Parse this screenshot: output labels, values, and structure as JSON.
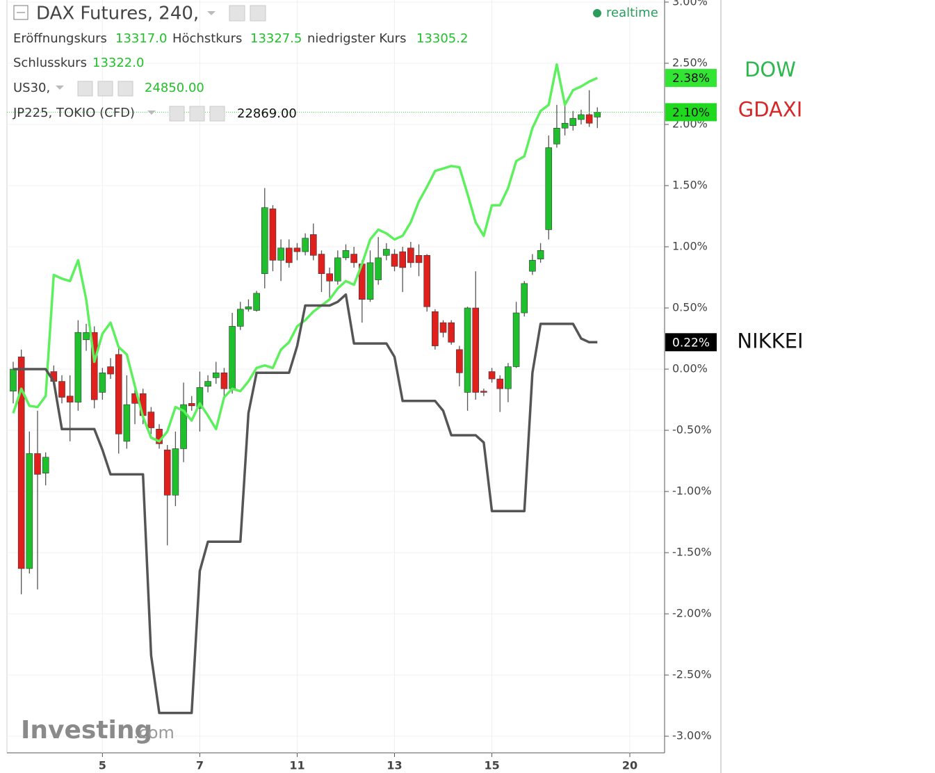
{
  "header": {
    "title": "DAX Futures, 240,",
    "status": "realtime",
    "ohlc": [
      {
        "label": "Eröffnungskurs",
        "value": "13317.0"
      },
      {
        "label": "Höchstkurs",
        "value": "13327.5"
      },
      {
        "label": "niedrigster Kurs",
        "value": "13305.2"
      },
      {
        "label": "Schlusskurs",
        "value": "13322.0"
      }
    ],
    "overlays": [
      {
        "label": "US30,",
        "value": "24850.00"
      },
      {
        "label": "JP225, TOKIO (CFD)",
        "value": "22869.00"
      }
    ],
    "watermark": {
      "brand": "Investing",
      "suffix": ".com"
    }
  },
  "chart_data": {
    "type": "candlestick",
    "x": [
      0,
      1,
      2,
      3,
      4,
      5,
      6,
      7,
      8,
      9,
      10,
      11,
      12,
      13,
      14,
      15,
      16,
      17,
      18,
      19,
      20,
      21,
      22,
      23,
      24,
      25,
      26,
      27,
      28,
      29,
      30,
      31,
      32,
      33,
      34,
      35,
      36,
      37,
      38,
      39,
      40,
      41,
      42,
      43,
      44,
      45,
      46,
      47,
      48,
      49,
      50,
      51,
      52,
      53,
      54,
      55,
      56,
      57,
      58,
      59,
      60,
      61,
      62,
      63,
      64,
      65,
      66,
      67,
      68,
      69,
      70,
      71,
      72
    ],
    "xlim": [
      -0.77,
      80.2
    ],
    "xticks": [
      {
        "value": 11,
        "label": "5"
      },
      {
        "value": 23,
        "label": "7"
      },
      {
        "value": 35,
        "label": "11"
      },
      {
        "value": 47,
        "label": "13"
      },
      {
        "value": 59,
        "label": "15"
      },
      {
        "value": 76,
        "label": "20"
      }
    ],
    "ylim": [
      -3.136,
      3.017
    ],
    "yticks": [
      {
        "value": -3,
        "label": "-3.00%"
      },
      {
        "value": -2.5,
        "label": "-2.50%"
      },
      {
        "value": -2,
        "label": "-2.00%"
      },
      {
        "value": -1.5,
        "label": "-1.50%"
      },
      {
        "value": -1,
        "label": "-1.00%"
      },
      {
        "value": -0.5,
        "label": "-0.50%"
      },
      {
        "value": 0,
        "label": "0.00%"
      },
      {
        "value": 0.5,
        "label": "0.50%"
      },
      {
        "value": 1,
        "label": "1.00%"
      },
      {
        "value": 1.5,
        "label": "1.50%"
      },
      {
        "value": 2,
        "label": "2.00%"
      },
      {
        "value": 2.5,
        "label": "2.50%"
      },
      {
        "value": 3,
        "label": "3.00%"
      }
    ],
    "grid": true,
    "series": [
      {
        "name": "GDAXI",
        "type": "candlestick",
        "color": "#d62728",
        "up_color": "#1fbf2e",
        "down_color": "#e0201c",
        "end_label": "2.10%",
        "end_label_color": "#1ed91e",
        "open": [
          -0.18,
          0.1,
          -1.63,
          -0.69,
          -0.85,
          -0.02,
          -0.1,
          -0.22,
          -0.27,
          0.24,
          0.3,
          -0.19,
          0.02,
          0.12,
          -0.59,
          -0.2,
          -0.2,
          -0.35,
          -0.49,
          -0.66,
          -1.03,
          -0.65,
          -0.28,
          -0.32,
          -0.14,
          -0.07,
          -0.03,
          -0.16,
          0.35,
          0.49,
          0.48,
          0.78,
          1.31,
          0.89,
          0.99,
          0.99,
          0.96,
          1.1,
          0.94,
          0.78,
          0.72,
          0.91,
          0.94,
          0.86,
          0.57,
          0.73,
          0.93,
          0.94,
          0.96,
          0.99,
          0.93,
          0.93,
          0.47,
          0.38,
          0.38,
          0.16,
          -0.19,
          0.5,
          -0.18,
          -0.02,
          -0.08,
          -0.16,
          0.02,
          0.46,
          0.8,
          0.9,
          1.14,
          1.84,
          1.97,
          1.99,
          2.04,
          2.08,
          2.06
        ],
        "high": [
          0.06,
          0.16,
          -0.51,
          -0.34,
          -0.68,
          0.03,
          -0.05,
          -0.05,
          0.4,
          0.37,
          0.35,
          0.01,
          0.09,
          0.18,
          -0.05,
          -0.11,
          -0.16,
          -0.31,
          -0.45,
          -0.62,
          -0.51,
          -0.11,
          -0.22,
          -0.02,
          -0.05,
          0.06,
          0.01,
          0.46,
          0.55,
          0.57,
          0.64,
          1.48,
          1.34,
          1.06,
          1.06,
          1.03,
          1.11,
          1.19,
          0.97,
          0.83,
          0.97,
          1.02,
          1.0,
          0.89,
          0.97,
          1.08,
          1.03,
          0.98,
          1.0,
          1.04,
          1.02,
          0.94,
          0.49,
          0.4,
          0.4,
          0.19,
          0.51,
          0.8,
          -0.16,
          0.01,
          -0.05,
          0.05,
          0.55,
          0.72,
          0.94,
          1.03,
          1.91,
          2.16,
          2.18,
          2.11,
          2.12,
          2.28,
          2.14
        ],
        "low": [
          -0.28,
          -1.84,
          -1.67,
          -1.8,
          -0.95,
          -0.14,
          -0.28,
          -0.59,
          -0.34,
          0.15,
          -0.32,
          -0.25,
          -0.08,
          -0.69,
          -0.65,
          -0.45,
          -0.45,
          -0.53,
          -0.65,
          -1.44,
          -1.12,
          -0.76,
          -0.34,
          -0.51,
          -0.19,
          -0.12,
          -0.22,
          -0.2,
          0.32,
          0.47,
          0.47,
          0.66,
          0.8,
          0.72,
          0.83,
          0.89,
          0.93,
          0.89,
          0.63,
          0.57,
          0.69,
          0.89,
          0.83,
          0.38,
          0.55,
          0.69,
          0.89,
          0.8,
          0.63,
          0.83,
          0.76,
          0.47,
          0.16,
          0.26,
          0.2,
          -0.14,
          -0.34,
          -0.25,
          -0.22,
          -0.11,
          -0.35,
          -0.27,
          0.01,
          0.43,
          0.77,
          0.87,
          1.06,
          1.81,
          1.91,
          1.95,
          2.0,
          1.98,
          1.97
        ],
        "close": [
          0.0,
          -1.63,
          -0.69,
          -0.86,
          -0.72,
          -0.1,
          -0.23,
          -0.27,
          0.3,
          0.3,
          -0.25,
          -0.03,
          -0.04,
          -0.53,
          -0.29,
          -0.28,
          -0.38,
          -0.48,
          -0.61,
          -1.03,
          -0.65,
          -0.29,
          -0.3,
          -0.15,
          -0.1,
          -0.03,
          -0.16,
          0.35,
          0.49,
          0.51,
          0.62,
          1.32,
          0.89,
          0.99,
          0.87,
          0.96,
          1.07,
          0.93,
          0.78,
          0.72,
          0.91,
          0.97,
          0.87,
          0.57,
          0.87,
          0.91,
          0.98,
          0.84,
          0.83,
          0.87,
          0.87,
          0.51,
          0.19,
          0.3,
          0.22,
          -0.03,
          0.5,
          -0.19,
          -0.19,
          -0.08,
          -0.16,
          0.02,
          0.46,
          0.7,
          0.89,
          0.97,
          1.81,
          1.97,
          2.01,
          2.05,
          2.08,
          2.01,
          2.1
        ]
      },
      {
        "name": "DOW",
        "type": "line",
        "color": "#5df05d",
        "label_color": "#2db84d",
        "end_label": "2.38%",
        "end_label_color": "#33e533",
        "values": [
          -0.36,
          -0.16,
          -0.3,
          -0.31,
          -0.22,
          0.77,
          0.74,
          0.72,
          0.89,
          0.57,
          0.06,
          0.29,
          0.38,
          0.18,
          0.12,
          -0.14,
          -0.39,
          -0.56,
          -0.59,
          -0.51,
          -0.31,
          -0.34,
          -0.42,
          -0.28,
          -0.38,
          -0.49,
          -0.23,
          -0.16,
          -0.18,
          -0.1,
          0.01,
          0.03,
          0.01,
          0.16,
          0.22,
          0.35,
          0.4,
          0.47,
          0.52,
          0.57,
          0.66,
          0.72,
          0.69,
          0.86,
          1.06,
          1.14,
          1.11,
          1.06,
          1.09,
          1.2,
          1.37,
          1.49,
          1.62,
          1.64,
          1.66,
          1.65,
          1.43,
          1.2,
          1.09,
          1.34,
          1.34,
          1.48,
          1.7,
          1.74,
          1.97,
          2.11,
          2.16,
          2.49,
          2.16,
          2.28,
          2.31,
          2.35,
          2.38
        ]
      },
      {
        "name": "NIKKEI",
        "type": "line",
        "color": "#555555",
        "label_color": "#111111",
        "end_label": "0.22%",
        "end_label_color": "#000000",
        "values": [
          0.0,
          0.0,
          0.0,
          0.0,
          0.0,
          -0.1,
          -0.49,
          -0.49,
          -0.49,
          -0.49,
          -0.49,
          -0.66,
          -0.86,
          -0.86,
          -0.86,
          -0.86,
          -0.86,
          -2.34,
          -2.81,
          -2.81,
          -2.81,
          -2.81,
          -2.81,
          -1.65,
          -1.41,
          -1.41,
          -1.41,
          -1.41,
          -1.41,
          -0.36,
          -0.03,
          -0.03,
          -0.03,
          -0.03,
          -0.03,
          0.19,
          0.52,
          0.52,
          0.52,
          0.52,
          0.55,
          0.61,
          0.21,
          0.21,
          0.21,
          0.21,
          0.21,
          0.1,
          -0.26,
          -0.26,
          -0.26,
          -0.26,
          -0.26,
          -0.34,
          -0.54,
          -0.54,
          -0.54,
          -0.54,
          -0.6,
          -1.16,
          -1.16,
          -1.16,
          -1.16,
          -1.16,
          -0.03,
          0.37,
          0.37,
          0.37,
          0.37,
          0.37,
          0.25,
          0.22,
          0.22
        ]
      }
    ]
  }
}
